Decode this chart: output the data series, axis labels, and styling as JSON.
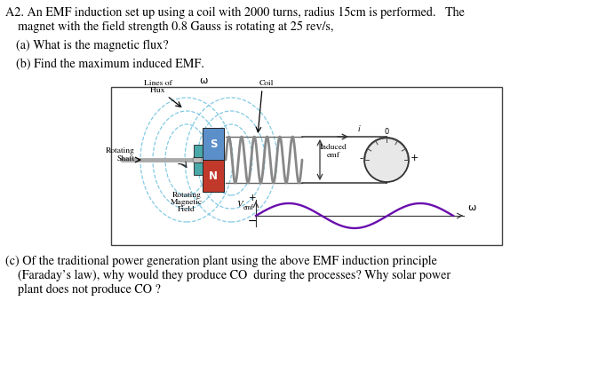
{
  "title_line1": "A2. An EMF induction set up using a coil with 2000 turns, radius 15cm is performed.   The",
  "title_line2": "    magnet with the field strength 0.8 Gauss is rotating at 25 rev/s,",
  "part_a": "(a) What is the magnetic flux?",
  "part_b": "(b) Find the maximum induced EMF.",
  "part_c_line1": "(c) Of the traditional power generation plant using the above EMF induction principle",
  "part_c_line2": "    (Faraday’s law), why would they produce CO₂ during the processes? Why solar power",
  "part_c_line3": "    plant does not produce CO₂?",
  "bg_color": "#ffffff",
  "text_color": "#000000",
  "magnet_red_color": "#c0392b",
  "magnet_blue_color": "#5b8fc9",
  "shaft_color": "#aaaaaa",
  "coil_color": "#888888",
  "flux_line_color": "#7ec8e3",
  "sine_color": "#6a0dad",
  "gauge_needle_color": "#e67e22",
  "label_fontsize": 6.8,
  "main_fontsize": 10.2
}
